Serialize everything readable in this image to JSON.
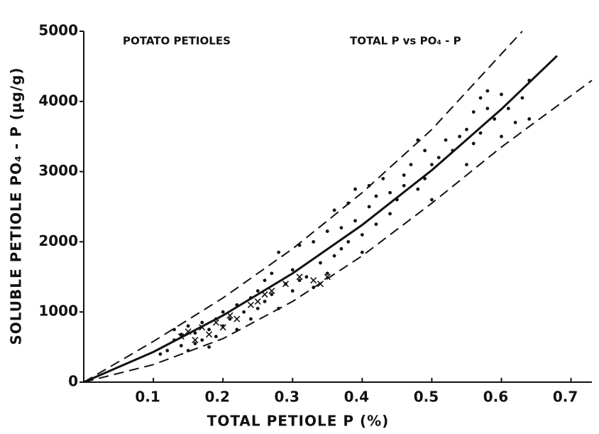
{
  "chart_data": {
    "type": "scatter",
    "annotations": [
      "POTATO PETIOLES",
      "TOTAL P vs PO₄ - P"
    ],
    "x_label": "TOTAL PETIOLE P (%)",
    "y_label": "SOLUBLE PETIOLE PO₄ - P (μg/g)",
    "xlim": [
      0,
      0.73
    ],
    "ylim": [
      0,
      5000
    ],
    "xticks": [
      0.1,
      0.2,
      0.3,
      0.4,
      0.5,
      0.6,
      0.7
    ],
    "yticks": [
      0,
      1000,
      2000,
      3000,
      4000,
      5000
    ],
    "color": "#111111",
    "series": [
      {
        "type": "scatter",
        "marker": "dot",
        "x": [
          0.11,
          0.12,
          0.13,
          0.13,
          0.14,
          0.14,
          0.15,
          0.15,
          0.16,
          0.16,
          0.17,
          0.17,
          0.18,
          0.18,
          0.19,
          0.19,
          0.2,
          0.2,
          0.21,
          0.22,
          0.22,
          0.23,
          0.24,
          0.24,
          0.25,
          0.25,
          0.26,
          0.26,
          0.27,
          0.27,
          0.28,
          0.28,
          0.29,
          0.3,
          0.3,
          0.31,
          0.31,
          0.32,
          0.33,
          0.33,
          0.34,
          0.35,
          0.35,
          0.36,
          0.36,
          0.37,
          0.37,
          0.38,
          0.38,
          0.39,
          0.39,
          0.4,
          0.4,
          0.41,
          0.41,
          0.42,
          0.42,
          0.43,
          0.44,
          0.44,
          0.45,
          0.46,
          0.46,
          0.47,
          0.48,
          0.48,
          0.49,
          0.49,
          0.5,
          0.5,
          0.51,
          0.52,
          0.53,
          0.54,
          0.55,
          0.55,
          0.56,
          0.56,
          0.57,
          0.57,
          0.58,
          0.58,
          0.59,
          0.6,
          0.6,
          0.61,
          0.62,
          0.63,
          0.64,
          0.64
        ],
        "values": [
          400,
          450,
          600,
          750,
          520,
          680,
          800,
          450,
          700,
          550,
          850,
          600,
          750,
          500,
          900,
          650,
          800,
          1000,
          900,
          1100,
          750,
          1000,
          1200,
          900,
          1300,
          1050,
          1450,
          1150,
          1550,
          1250,
          1850,
          1050,
          1400,
          1300,
          1600,
          1450,
          1950,
          1500,
          2000,
          1350,
          1700,
          2150,
          1550,
          1800,
          2450,
          2200,
          1900,
          2000,
          2550,
          2750,
          2300,
          2100,
          1850,
          2500,
          2800,
          2250,
          2650,
          2900,
          2400,
          2700,
          2600,
          2950,
          2800,
          3100,
          3450,
          2750,
          3300,
          2900,
          3100,
          2600,
          3200,
          3450,
          3300,
          3500,
          3600,
          3100,
          3400,
          3850,
          3550,
          4050,
          3900,
          4150,
          3750,
          3500,
          4100,
          3900,
          3700,
          4050,
          3750,
          4300
        ]
      },
      {
        "type": "scatter",
        "marker": "cross",
        "x": [
          0.14,
          0.15,
          0.16,
          0.17,
          0.18,
          0.19,
          0.2,
          0.21,
          0.22,
          0.24,
          0.25,
          0.26,
          0.27,
          0.29,
          0.31,
          0.33,
          0.34,
          0.35
        ],
        "values": [
          650,
          720,
          600,
          780,
          680,
          850,
          780,
          950,
          900,
          1100,
          1150,
          1250,
          1300,
          1400,
          1500,
          1450,
          1400,
          1500
        ]
      },
      {
        "type": "line",
        "dash": false,
        "x": [
          0,
          0.1,
          0.2,
          0.3,
          0.4,
          0.5,
          0.6,
          0.68
        ],
        "values": [
          0,
          430,
          950,
          1550,
          2240,
          3020,
          3890,
          4650
        ]
      },
      {
        "type": "line",
        "dash": true,
        "x": [
          0,
          0.1,
          0.2,
          0.3,
          0.4,
          0.5,
          0.63
        ],
        "values": [
          0,
          580,
          1200,
          1900,
          2700,
          3600,
          5000
        ]
      },
      {
        "type": "line",
        "dash": true,
        "x": [
          0,
          0.1,
          0.2,
          0.3,
          0.4,
          0.5,
          0.6,
          0.73
        ],
        "values": [
          0,
          250,
          620,
          1150,
          1800,
          2550,
          3350,
          4300
        ]
      }
    ]
  }
}
